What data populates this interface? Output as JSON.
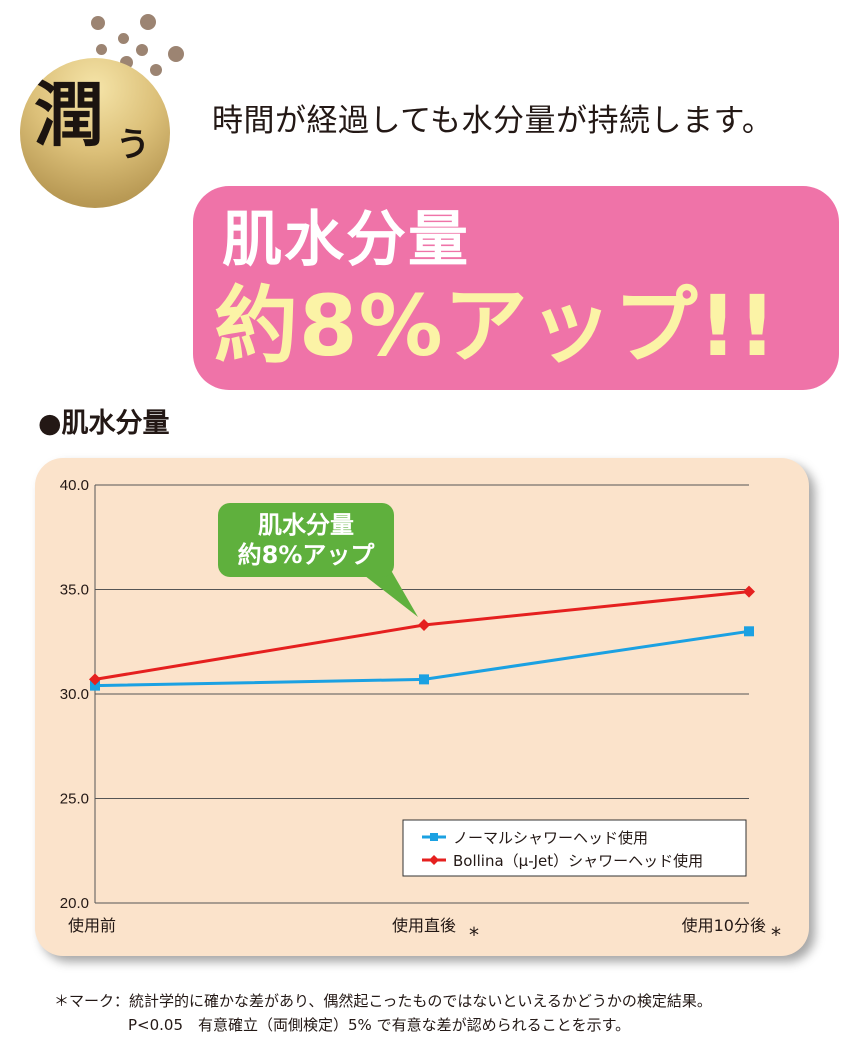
{
  "header": {
    "badge_main": "潤",
    "badge_small": "う",
    "subtitle": "時間が経過しても水分量が持続します。"
  },
  "banner": {
    "line1": "肌水分量",
    "line2": "約8%アップ!!"
  },
  "section_heading": "●肌水分量",
  "colors": {
    "normal": "#1ba1e2",
    "bollina": "#e5201f",
    "banner": "#ef73a8",
    "callout": "#5fb03d",
    "panel": "#fbe3cb"
  },
  "chart_data": {
    "type": "line",
    "categories": [
      "使用前",
      "使用直後",
      "使用10分後"
    ],
    "category_marks": [
      "",
      "*",
      "*"
    ],
    "ylim": [
      20,
      40
    ],
    "yticks": [
      "20.0",
      "25.0",
      "30.0",
      "35.0",
      "40.0"
    ],
    "grid": true,
    "legend_position": "bottom-right",
    "series": [
      {
        "name": "ノーマルシャワーヘッド使用",
        "marker": "square",
        "color": "#1ba1e2",
        "values": [
          30.4,
          30.7,
          33.0
        ]
      },
      {
        "name": "Bollina（μ-Jet）シャワーヘッド使用",
        "marker": "diamond",
        "color": "#e5201f",
        "values": [
          30.7,
          33.3,
          34.9
        ]
      }
    ],
    "annotation": {
      "lines": [
        "肌水分量",
        "約8%アップ"
      ],
      "points_to": 1
    }
  },
  "footnote": {
    "line1": "＊マーク：統計学的に確かな差があり、偶然起こったものではないといえるかどうかの検定結果。",
    "line2": "P<0.05　有意確立（両側検定）5% で有意な差が認められることを示す。"
  }
}
